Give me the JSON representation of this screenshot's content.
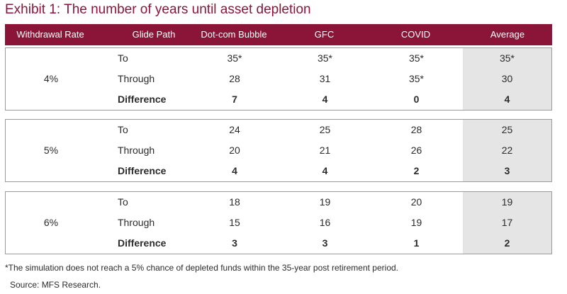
{
  "title": "Exhibit 1: The number of years until asset depletion",
  "table": {
    "headers": [
      "Withdrawal Rate",
      "Glide Path",
      "Dot-com Bubble",
      "GFC",
      "COVID",
      "Average"
    ],
    "groups": [
      {
        "rate": "4%",
        "rows": [
          {
            "path": "To",
            "values": [
              "35*",
              "35*",
              "35*",
              "35*"
            ]
          },
          {
            "path": "Through",
            "values": [
              "28",
              "31",
              "35*",
              "30"
            ]
          },
          {
            "path": "Difference",
            "values": [
              "7",
              "4",
              "0",
              "4"
            ]
          }
        ]
      },
      {
        "rate": "5%",
        "rows": [
          {
            "path": "To",
            "values": [
              "24",
              "25",
              "28",
              "25"
            ]
          },
          {
            "path": "Through",
            "values": [
              "20",
              "21",
              "26",
              "22"
            ]
          },
          {
            "path": "Difference",
            "values": [
              "4",
              "4",
              "2",
              "3"
            ]
          }
        ]
      },
      {
        "rate": "6%",
        "rows": [
          {
            "path": "To",
            "values": [
              "18",
              "19",
              "20",
              "19"
            ]
          },
          {
            "path": "Through",
            "values": [
              "15",
              "16",
              "19",
              "17"
            ]
          },
          {
            "path": "Difference",
            "values": [
              "3",
              "3",
              "1",
              "2"
            ]
          }
        ]
      }
    ]
  },
  "footnote": "*The simulation does not reach a 5% chance of depleted funds within the 35-year post retirement period.",
  "source": "Source: MFS Research.",
  "colors": {
    "header_bg": "#8a1538",
    "title": "#8a1538",
    "average_bg": "#e5e5e5"
  }
}
